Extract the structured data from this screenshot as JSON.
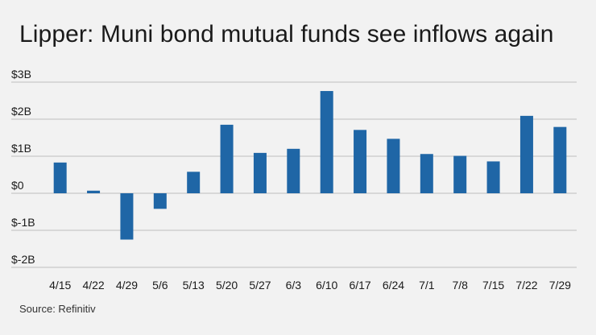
{
  "title": "Lipper: Muni bond mutual funds see inflows again",
  "source": "Source: Refinitiv",
  "colors": {
    "bar": "#1f66a6",
    "grid": "#bdbdbd",
    "background": "#f2f2f2",
    "text": "#1a1a1a"
  },
  "chart_data": {
    "type": "bar",
    "title": "Lipper: Muni bond mutual funds see inflows again",
    "xlabel": "",
    "ylabel": "",
    "categories": [
      "4/15",
      "4/22",
      "4/29",
      "5/6",
      "5/13",
      "5/20",
      "5/27",
      "6/3",
      "6/10",
      "6/17",
      "6/24",
      "7/1",
      "7/8",
      "7/15",
      "7/22",
      "7/29"
    ],
    "values": [
      0.83,
      0.07,
      -1.25,
      -0.42,
      0.58,
      1.85,
      1.09,
      1.2,
      2.76,
      1.71,
      1.47,
      1.06,
      1.01,
      0.86,
      2.09,
      1.79
    ],
    "unit": "billions of dollars",
    "ylim": [
      -2,
      3
    ],
    "yticks": [
      3,
      2,
      1,
      0,
      -1,
      -2
    ],
    "ytick_labels": [
      "$3B",
      "$2B",
      "$1B",
      "$0",
      "$-1B",
      "$-2B"
    ],
    "grid": true,
    "legend": "none"
  }
}
